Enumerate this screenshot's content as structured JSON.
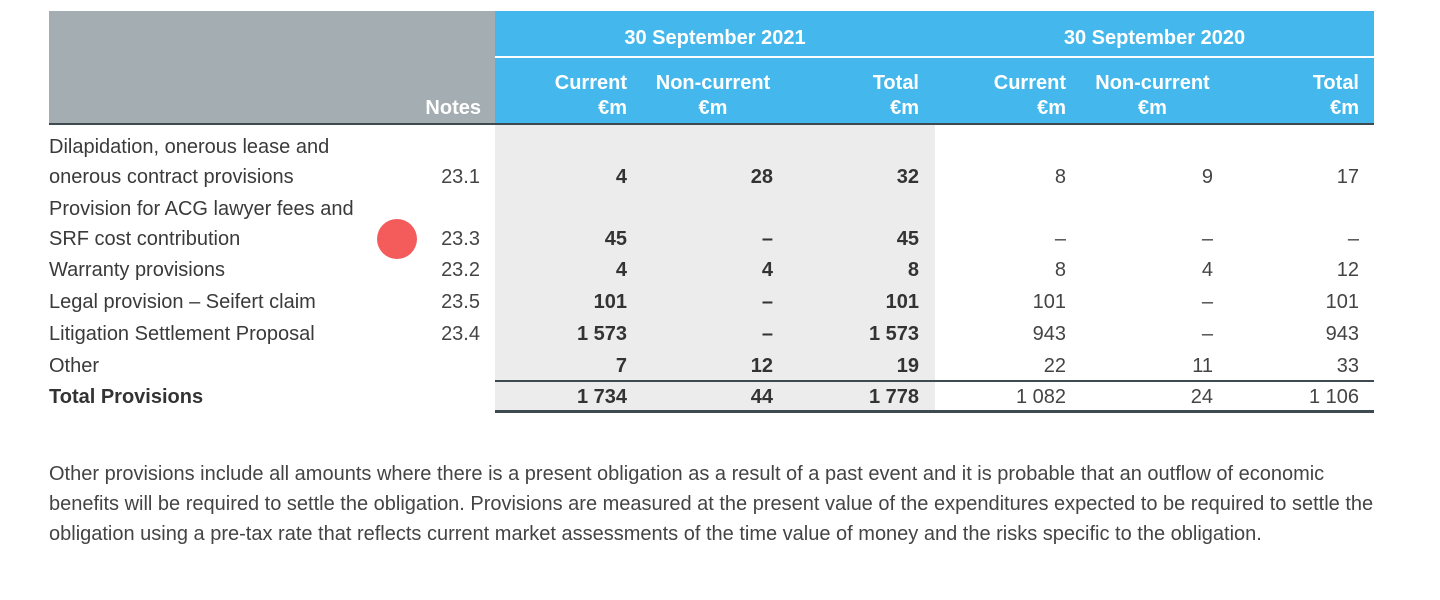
{
  "header": {
    "notes_label": "Notes",
    "periods": [
      {
        "label": "30 September 2021",
        "columns": [
          {
            "line1": "Current",
            "line2": "€m"
          },
          {
            "line1": "Non-current",
            "line2": "€m"
          },
          {
            "line1": "Total",
            "line2": "€m"
          }
        ]
      },
      {
        "label": "30 September 2020",
        "columns": [
          {
            "line1": "Current",
            "line2": "€m"
          },
          {
            "line1": "Non-current",
            "line2": "€m"
          },
          {
            "line1": "Total",
            "line2": "€m"
          }
        ]
      }
    ]
  },
  "rows": [
    {
      "label1": "Dilapidation, onerous lease and",
      "label2": "onerous contract provisions",
      "note": "23.1",
      "values": [
        "4",
        "28",
        "32",
        "8",
        "9",
        "17"
      ]
    },
    {
      "label1": "Provision for ACG lawyer fees and",
      "label2": "SRF cost contribution",
      "note": "23.3",
      "values": [
        "45",
        "–",
        "45",
        "–",
        "–",
        "–"
      ]
    },
    {
      "label1": "Warranty provisions",
      "note": "23.2",
      "values": [
        "4",
        "4",
        "8",
        "8",
        "4",
        "12"
      ]
    },
    {
      "label1": "Legal provision – Seifert claim",
      "note": "23.5",
      "values": [
        "101",
        "–",
        "101",
        "101",
        "–",
        "101"
      ]
    },
    {
      "label1": "Litigation Settlement Proposal",
      "note": "23.4",
      "values": [
        "1 573",
        "–",
        "1 573",
        "943",
        "–",
        "943"
      ]
    },
    {
      "label1": "Other",
      "note": "",
      "values": [
        "7",
        "12",
        "19",
        "22",
        "11",
        "33"
      ]
    },
    {
      "label1": "Total Provisions",
      "note": "",
      "values": [
        "1 734",
        "44",
        "1 778",
        "1 082",
        "24",
        "1 106"
      ]
    }
  ],
  "paragraph": "Other provisions include all amounts where there is a present obligation as a result of a past event and it is probable that an outflow of economic benefits will be required to settle the obligation. Provisions are measured at the present value of the expenditures expected to be required to settle the obligation using a pre-tax rate that reflects current market assessments of the time value of money and the risks specific to the obligation.",
  "colors": {
    "header_grey": "#a4aeb2",
    "header_blue": "#44b8ec",
    "marker_red": "#f45b5b"
  }
}
